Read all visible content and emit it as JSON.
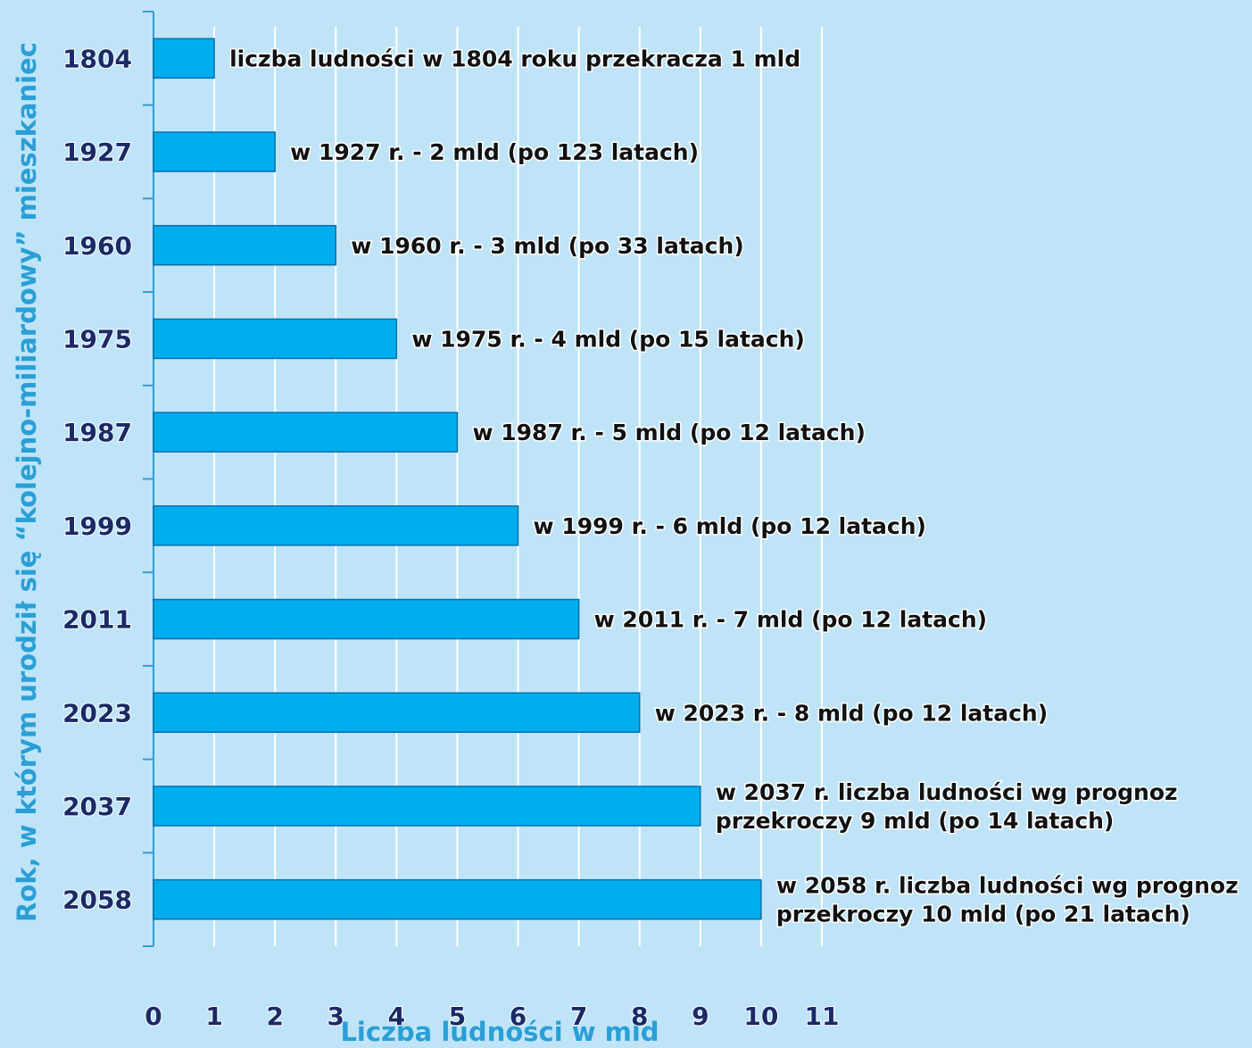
{
  "chart_data": {
    "type": "bar",
    "orientation": "horizontal",
    "categories": [
      "1804",
      "1927",
      "1960",
      "1975",
      "1987",
      "1999",
      "2011",
      "2023",
      "2037",
      "2058"
    ],
    "values": [
      1,
      2,
      3,
      4,
      5,
      6,
      7,
      8,
      9,
      10
    ],
    "color": "#00aeef",
    "annotations": [
      [
        "liczba ludności w 1804 roku przekracza 1 mld"
      ],
      [
        "w 1927 r. - 2 mld (po 123 latach)"
      ],
      [
        "w 1960 r. - 3 mld (po 33 latach)"
      ],
      [
        "w 1975 r. - 4 mld (po 15 latach)"
      ],
      [
        "w 1987 r. - 5 mld (po 12 latach)"
      ],
      [
        "w 1999 r. - 6 mld (po 12 latach)"
      ],
      [
        "w 2011 r. - 7 mld (po 12 latach)"
      ],
      [
        "w 2023 r. - 8 mld (po 12 latach)"
      ],
      [
        "w 2037 r. liczba ludności wg prognoz",
        "przekroczy 9 mld (po 14 latach)"
      ],
      [
        "w 2058 r. liczba ludności wg prognoz",
        "przekroczy 10 mld (po 21 latach)"
      ]
    ],
    "xlabel": "Liczba ludności w mld",
    "ylabel": "Rok, w którym urodził się “kolejno-miliardowy” mieszkaniec",
    "xlim": [
      0,
      11
    ],
    "xticks": [
      0,
      1,
      2,
      3,
      4,
      5,
      6,
      7,
      8,
      9,
      10,
      11
    ],
    "grid": true
  }
}
